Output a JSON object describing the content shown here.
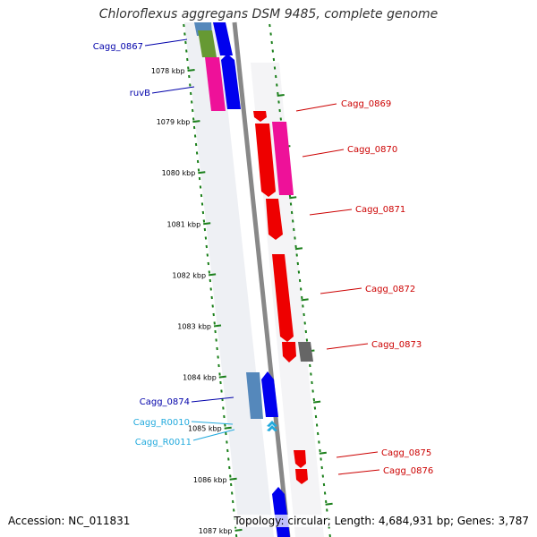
{
  "title": "Chloroflexus aggregans DSM 9485, complete genome",
  "footer": {
    "accession": "Accession: NC_011831",
    "summary": "Topology: circular; Length: 4,684,931 bp; Genes: 3,787"
  },
  "colors": {
    "backbone": "#888888",
    "tick": "#1a7f1a",
    "label_blue": "#0000aa",
    "label_red": "#cc0000",
    "label_cyan": "#22aadd",
    "gene_blue": "#0000ee",
    "gene_red": "#ee0000",
    "gene_magenta": "#ee1199",
    "gene_olive": "#669933",
    "gene_steel": "#5588bb",
    "gene_gray": "#666666"
  },
  "kbp_ticks": [
    {
      "label": "1078 kbp"
    },
    {
      "label": "1079 kbp"
    },
    {
      "label": "1080 kbp"
    },
    {
      "label": "1081 kbp"
    },
    {
      "label": "1082 kbp"
    },
    {
      "label": "1083 kbp"
    },
    {
      "label": "1084 kbp"
    },
    {
      "label": "1085 kbp"
    },
    {
      "label": "1086 kbp"
    },
    {
      "label": "1087 kbp"
    }
  ],
  "gene_labels": [
    {
      "text": "Cagg_0867",
      "color": "blue"
    },
    {
      "text": "ruvB",
      "color": "blue"
    },
    {
      "text": "Cagg_0869",
      "color": "red"
    },
    {
      "text": "Cagg_0870",
      "color": "red"
    },
    {
      "text": "Cagg_0871",
      "color": "red"
    },
    {
      "text": "Cagg_0872",
      "color": "red"
    },
    {
      "text": "Cagg_0873",
      "color": "red"
    },
    {
      "text": "Cagg_0874",
      "color": "blue"
    },
    {
      "text": "Cagg_R0010",
      "color": "cyan"
    },
    {
      "text": "Cagg_R0011",
      "color": "cyan"
    },
    {
      "text": "Cagg_0875",
      "color": "red"
    },
    {
      "text": "Cagg_0876",
      "color": "red"
    }
  ]
}
